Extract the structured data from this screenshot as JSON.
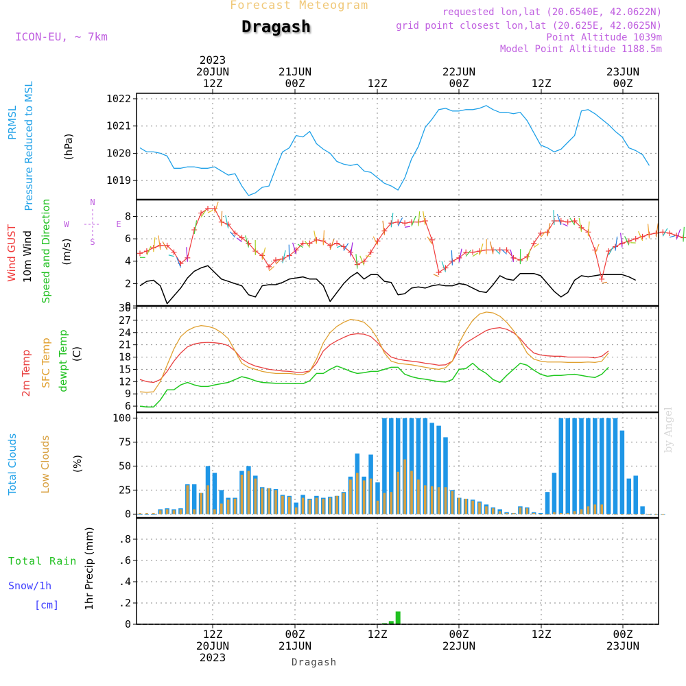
{
  "header": {
    "product_title": "Forecast Meteogram",
    "station": "Dragash",
    "model": "ICON-EU, ~ 7km",
    "requested": "requested lon,lat (20.6540E, 42.0622N)",
    "grid_point": "grid point closest lon,lat (20.625E, 42.0625N)",
    "point_altitude": "Point Altitude 1039m",
    "model_altitude": "Model Point Altitude 1188.5m"
  },
  "footer": {
    "station": "Dragash",
    "watermark": "by Angel"
  },
  "panel_labels": {
    "pressure": [
      "PRMSL",
      "Pressure Reduced to MSL",
      "(hPa)"
    ],
    "wind": [
      "Wind GUST",
      "10m Wind",
      "Speed and Direction",
      "(m/s)"
    ],
    "wind_rose": [
      "N",
      "E",
      "S",
      "W"
    ],
    "temp": [
      "2m Temp",
      "SFC Temp",
      "dewpt Temp",
      "(C)"
    ],
    "clouds": [
      "Total Clouds",
      "Low Clouds",
      "(%)"
    ],
    "precip": [
      "Total Rain",
      "Snow/1h",
      "[cm]",
      "1hr Precip (mm)"
    ]
  },
  "colors": {
    "pressure": "#1ea0e8",
    "gust": "#f03c3c",
    "wind": "#000000",
    "temp2m": "#e84040",
    "sfc": "#e0a030",
    "dewpt": "#20c820",
    "total_clouds": "#1e96e6",
    "low_clouds": "#d8a040",
    "rain": "#20c020",
    "snow": "#4040ff",
    "purple": "#c060e0"
  },
  "chart_data": {
    "type": "line",
    "time_axis": {
      "start": "2023-06-20 01Z",
      "step_hours": 1,
      "top_ticks": [
        {
          "label": [
            "2023",
            "20JUN",
            "12Z"
          ]
        },
        {
          "label": [
            "21JUN",
            "00Z"
          ]
        },
        {
          "label": [
            "12Z"
          ]
        },
        {
          "label": [
            "22JUN",
            "00Z"
          ]
        },
        {
          "label": [
            "12Z"
          ]
        },
        {
          "label": [
            "23JUN",
            "00Z"
          ]
        }
      ],
      "bottom_ticks": [
        {
          "label": [
            "12Z",
            "20JUN",
            "2023"
          ]
        },
        {
          "label": [
            "00Z",
            "21JUN"
          ]
        },
        {
          "label": [
            "12Z"
          ]
        },
        {
          "label": [
            "00Z",
            "22JUN"
          ]
        },
        {
          "label": [
            "12Z"
          ]
        },
        {
          "label": [
            "00Z",
            "23JUN"
          ]
        }
      ]
    },
    "pressure": {
      "name": "PRMSL",
      "ylim": [
        1018.3,
        1022.2
      ],
      "yticks": [
        1019,
        1020,
        1021,
        1022
      ],
      "values": [
        1020.2,
        1020.05,
        1020.05,
        1020.0,
        1019.9,
        1019.45,
        1019.45,
        1019.5,
        1019.5,
        1019.45,
        1019.45,
        1019.5,
        1019.35,
        1019.2,
        1019.25,
        1018.8,
        1018.45,
        1018.55,
        1018.75,
        1018.8,
        1019.45,
        1020.05,
        1020.2,
        1020.65,
        1020.6,
        1020.8,
        1020.35,
        1020.15,
        1020.0,
        1019.7,
        1019.6,
        1019.55,
        1019.6,
        1019.35,
        1019.3,
        1019.1,
        1018.9,
        1018.8,
        1018.65,
        1019.1,
        1019.8,
        1020.25,
        1020.95,
        1021.25,
        1021.6,
        1021.65,
        1021.55,
        1021.55,
        1021.6,
        1021.6,
        1021.65,
        1021.75,
        1021.6,
        1021.5,
        1021.5,
        1021.45,
        1021.5,
        1021.2,
        1020.75,
        1020.3,
        1020.2,
        1020.05,
        1020.15,
        1020.4,
        1020.65,
        1021.55,
        1021.6,
        1021.45,
        1021.25,
        1021.05,
        1020.8,
        1020.6,
        1020.2,
        1020.1,
        1019.95,
        1019.55
      ]
    },
    "wind": {
      "ylim": [
        0,
        9.5
      ],
      "yticks": [
        0,
        2,
        4,
        6,
        8
      ],
      "gust": [
        4.7,
        4.9,
        5.2,
        5.4,
        5.4,
        4.8,
        3.8,
        4.3,
        6.8,
        8.3,
        8.7,
        8.7,
        7.5,
        7.3,
        6.5,
        6.1,
        5.6,
        4.9,
        4.5,
        3.5,
        4.1,
        4.2,
        4.5,
        5.0,
        5.6,
        5.6,
        5.9,
        5.8,
        5.4,
        5.6,
        5.3,
        4.8,
        3.7,
        4.0,
        4.8,
        5.8,
        6.7,
        7.4,
        7.5,
        7.4,
        7.5,
        7.5,
        7.6,
        5.9,
        3.0,
        3.4,
        4.0,
        4.3,
        4.8,
        4.8,
        4.9,
        5.0,
        5.0,
        5.0,
        5.0,
        4.3,
        4.1,
        4.4,
        5.6,
        6.5,
        6.6,
        7.6,
        7.6,
        7.5,
        7.6,
        7.0,
        6.6,
        5.0,
        2.4,
        4.9,
        5.3,
        5.6,
        5.8,
        6.0,
        6.2,
        6.4,
        6.5,
        6.6,
        6.5,
        6.3,
        6.1
      ],
      "speed": [
        1.8,
        2.2,
        2.3,
        1.8,
        0.2,
        0.9,
        1.6,
        2.5,
        3.1,
        3.4,
        3.6,
        3.0,
        2.4,
        2.2,
        2.0,
        1.8,
        1.0,
        0.8,
        1.8,
        1.9,
        1.9,
        2.1,
        2.4,
        2.5,
        2.6,
        2.4,
        2.4,
        1.8,
        0.4,
        1.2,
        2.0,
        2.6,
        3.0,
        2.4,
        2.8,
        2.8,
        2.2,
        2.1,
        1.0,
        1.1,
        1.6,
        1.7,
        1.6,
        1.8,
        1.9,
        1.8,
        1.8,
        2.0,
        1.9,
        1.6,
        1.3,
        1.2,
        1.9,
        2.7,
        2.4,
        2.3,
        2.9,
        2.9,
        2.9,
        2.7,
        2.0,
        1.3,
        0.8,
        1.2,
        2.3,
        2.7,
        2.6,
        2.7,
        2.8,
        2.8,
        2.8,
        2.8,
        2.6,
        2.3
      ]
    },
    "temperature": {
      "ylim": [
        4.5,
        30.5
      ],
      "yticks": [
        6,
        9,
        12,
        15,
        18,
        21,
        24,
        27,
        30
      ],
      "t2m": [
        12.5,
        12.0,
        11.8,
        12.5,
        14.5,
        17.0,
        19.0,
        20.5,
        21.2,
        21.5,
        21.6,
        21.5,
        21.3,
        20.8,
        19.5,
        17.5,
        16.5,
        15.8,
        15.4,
        15.0,
        14.8,
        14.6,
        14.5,
        14.3,
        14.3,
        14.6,
        16.5,
        19.5,
        21.0,
        22.0,
        22.8,
        23.5,
        23.7,
        23.6,
        23.0,
        21.5,
        19.5,
        18.0,
        17.5,
        17.2,
        17.0,
        16.8,
        16.5,
        16.3,
        16.0,
        16.1,
        17.0,
        20.0,
        21.5,
        22.5,
        23.5,
        24.5,
        25.0,
        25.2,
        24.8,
        24.0,
        22.5,
        20.5,
        19.0,
        18.5,
        18.3,
        18.2,
        18.2,
        18.0,
        18.0,
        18.0,
        18.0,
        17.8,
        18.2,
        19.5
      ],
      "sfc": [
        9.5,
        9.4,
        9.5,
        12.0,
        16.0,
        20.0,
        23.0,
        24.5,
        25.3,
        25.7,
        25.5,
        25.0,
        24.0,
        22.5,
        19.5,
        16.5,
        15.5,
        15.0,
        14.5,
        14.2,
        14.0,
        14.0,
        14.0,
        13.8,
        13.7,
        14.5,
        17.5,
        21.5,
        24.0,
        25.5,
        26.5,
        27.2,
        27.0,
        26.5,
        25.0,
        22.5,
        19.0,
        17.0,
        16.5,
        16.3,
        16.1,
        15.8,
        15.5,
        15.2,
        15.0,
        15.4,
        17.0,
        21.5,
        24.5,
        27.0,
        28.5,
        29.0,
        28.8,
        28.0,
        26.5,
        24.5,
        22.0,
        19.0,
        17.5,
        17.0,
        16.8,
        16.8,
        16.8,
        16.7,
        16.7,
        16.7,
        16.8,
        16.7,
        17.0,
        19.0
      ],
      "dewpt": [
        6.0,
        5.8,
        5.8,
        7.5,
        10.0,
        10.0,
        11.2,
        11.8,
        11.2,
        10.8,
        10.8,
        11.2,
        11.5,
        11.8,
        12.5,
        13.2,
        12.8,
        12.2,
        11.8,
        11.7,
        11.6,
        11.6,
        11.5,
        11.5,
        11.5,
        12.2,
        14.0,
        14.0,
        15.0,
        15.8,
        15.2,
        14.5,
        14.0,
        14.2,
        14.5,
        14.5,
        15.0,
        15.5,
        15.5,
        13.8,
        13.2,
        12.8,
        12.6,
        12.3,
        12.0,
        11.9,
        12.5,
        15.0,
        15.2,
        16.5,
        15.0,
        14.0,
        12.5,
        11.8,
        13.5,
        15.0,
        16.5,
        16.0,
        14.8,
        13.8,
        13.3,
        13.5,
        13.5,
        13.7,
        13.8,
        13.5,
        13.2,
        13.0,
        13.8,
        15.5
      ]
    },
    "clouds": {
      "ylim": [
        -4,
        106
      ],
      "yticks": [
        0,
        25,
        50,
        75,
        100
      ],
      "total": [
        0,
        0,
        0,
        5,
        6,
        5,
        6,
        31,
        31,
        22,
        50,
        43,
        25,
        17,
        17,
        45,
        50,
        40,
        28,
        27,
        26,
        20,
        19,
        12,
        20,
        16,
        19,
        17,
        18,
        19,
        23,
        39,
        63,
        39,
        62,
        33,
        100,
        100,
        100,
        100,
        100,
        100,
        100,
        95,
        92,
        80,
        25,
        17,
        16,
        15,
        13,
        10,
        7,
        5,
        2,
        1,
        8,
        7,
        2,
        1,
        23,
        43,
        100,
        100,
        100,
        100,
        100,
        100,
        100,
        100,
        100,
        87,
        37,
        40,
        8,
        0,
        0,
        0
      ],
      "low": [
        1,
        1,
        1,
        4,
        5,
        4,
        5,
        30,
        5,
        22,
        30,
        5,
        11,
        15,
        16,
        41,
        45,
        37,
        27,
        27,
        25,
        19,
        18,
        7,
        17,
        15,
        17,
        16,
        17,
        19,
        22,
        36,
        43,
        35,
        37,
        14,
        22,
        23,
        44,
        57,
        45,
        36,
        30,
        29,
        28,
        28,
        24,
        17,
        16,
        14,
        12,
        8,
        6,
        3,
        1,
        1,
        7,
        6,
        1,
        0,
        0,
        2,
        1,
        1,
        3,
        5,
        8,
        10,
        10,
        0,
        0,
        0,
        0,
        0,
        0,
        0,
        0,
        0
      ]
    },
    "precip": {
      "ylim": [
        0,
        1.0
      ],
      "yticks": [
        0,
        0.2,
        0.4,
        0.6,
        0.8
      ],
      "rain": [
        0,
        0,
        0,
        0,
        0,
        0,
        0,
        0,
        0,
        0,
        0,
        0,
        0,
        0,
        0,
        0,
        0,
        0,
        0,
        0,
        0,
        0,
        0,
        0,
        0,
        0,
        0,
        0,
        0,
        0,
        0,
        0,
        0,
        0,
        0,
        0,
        0.01,
        0.03,
        0.12,
        0,
        0,
        0,
        0,
        0,
        0,
        0,
        0,
        0,
        0,
        0,
        0,
        0,
        0,
        0,
        0,
        0,
        0,
        0,
        0,
        0,
        0,
        0,
        0,
        0,
        0,
        0,
        0,
        0,
        0,
        0,
        0,
        0,
        0,
        0,
        0,
        0,
        0,
        0
      ]
    }
  }
}
